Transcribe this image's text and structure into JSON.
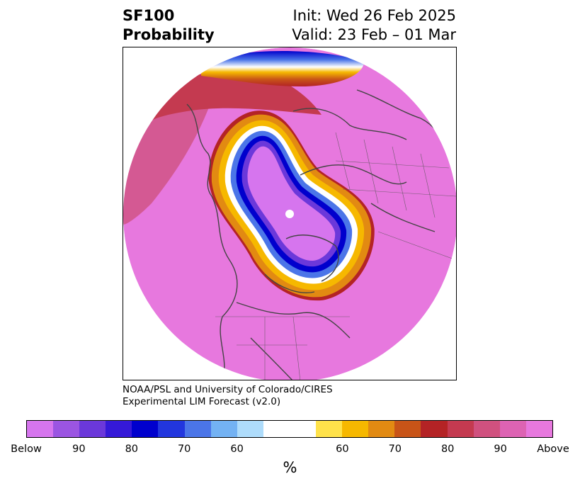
{
  "title": {
    "left_line1": "SF100",
    "left_line2": "Probability",
    "right_line1": "Init: Wed 26 Feb 2025",
    "right_line2": "Valid: 23 Feb – 01 Mar"
  },
  "credit": {
    "line1": "NOAA/PSL and University of Colorado/CIRES",
    "line2": "Experimental LIM Forecast (v2.0)"
  },
  "colorbar": {
    "unit_label": "%",
    "colors": [
      "#d675ee",
      "#9b55e2",
      "#6b38da",
      "#3519d8",
      "#0000cd",
      "#2236de",
      "#4b75e8",
      "#73b2f3",
      "#aedcfb",
      "#ffffff",
      "#ffffff",
      "#ffe24a",
      "#f6b800",
      "#e28a12",
      "#c85418",
      "#b42325",
      "#c43a50",
      "#d0517f",
      "#dd63b3",
      "#e778de"
    ],
    "tick_labels": [
      "Below",
      "90",
      "80",
      "70",
      "60",
      "60",
      "70",
      "80",
      "90",
      "Above"
    ]
  },
  "map": {
    "background_color": "#e778de",
    "below_color": "#d675ee",
    "pole_marker": "white-dot"
  }
}
